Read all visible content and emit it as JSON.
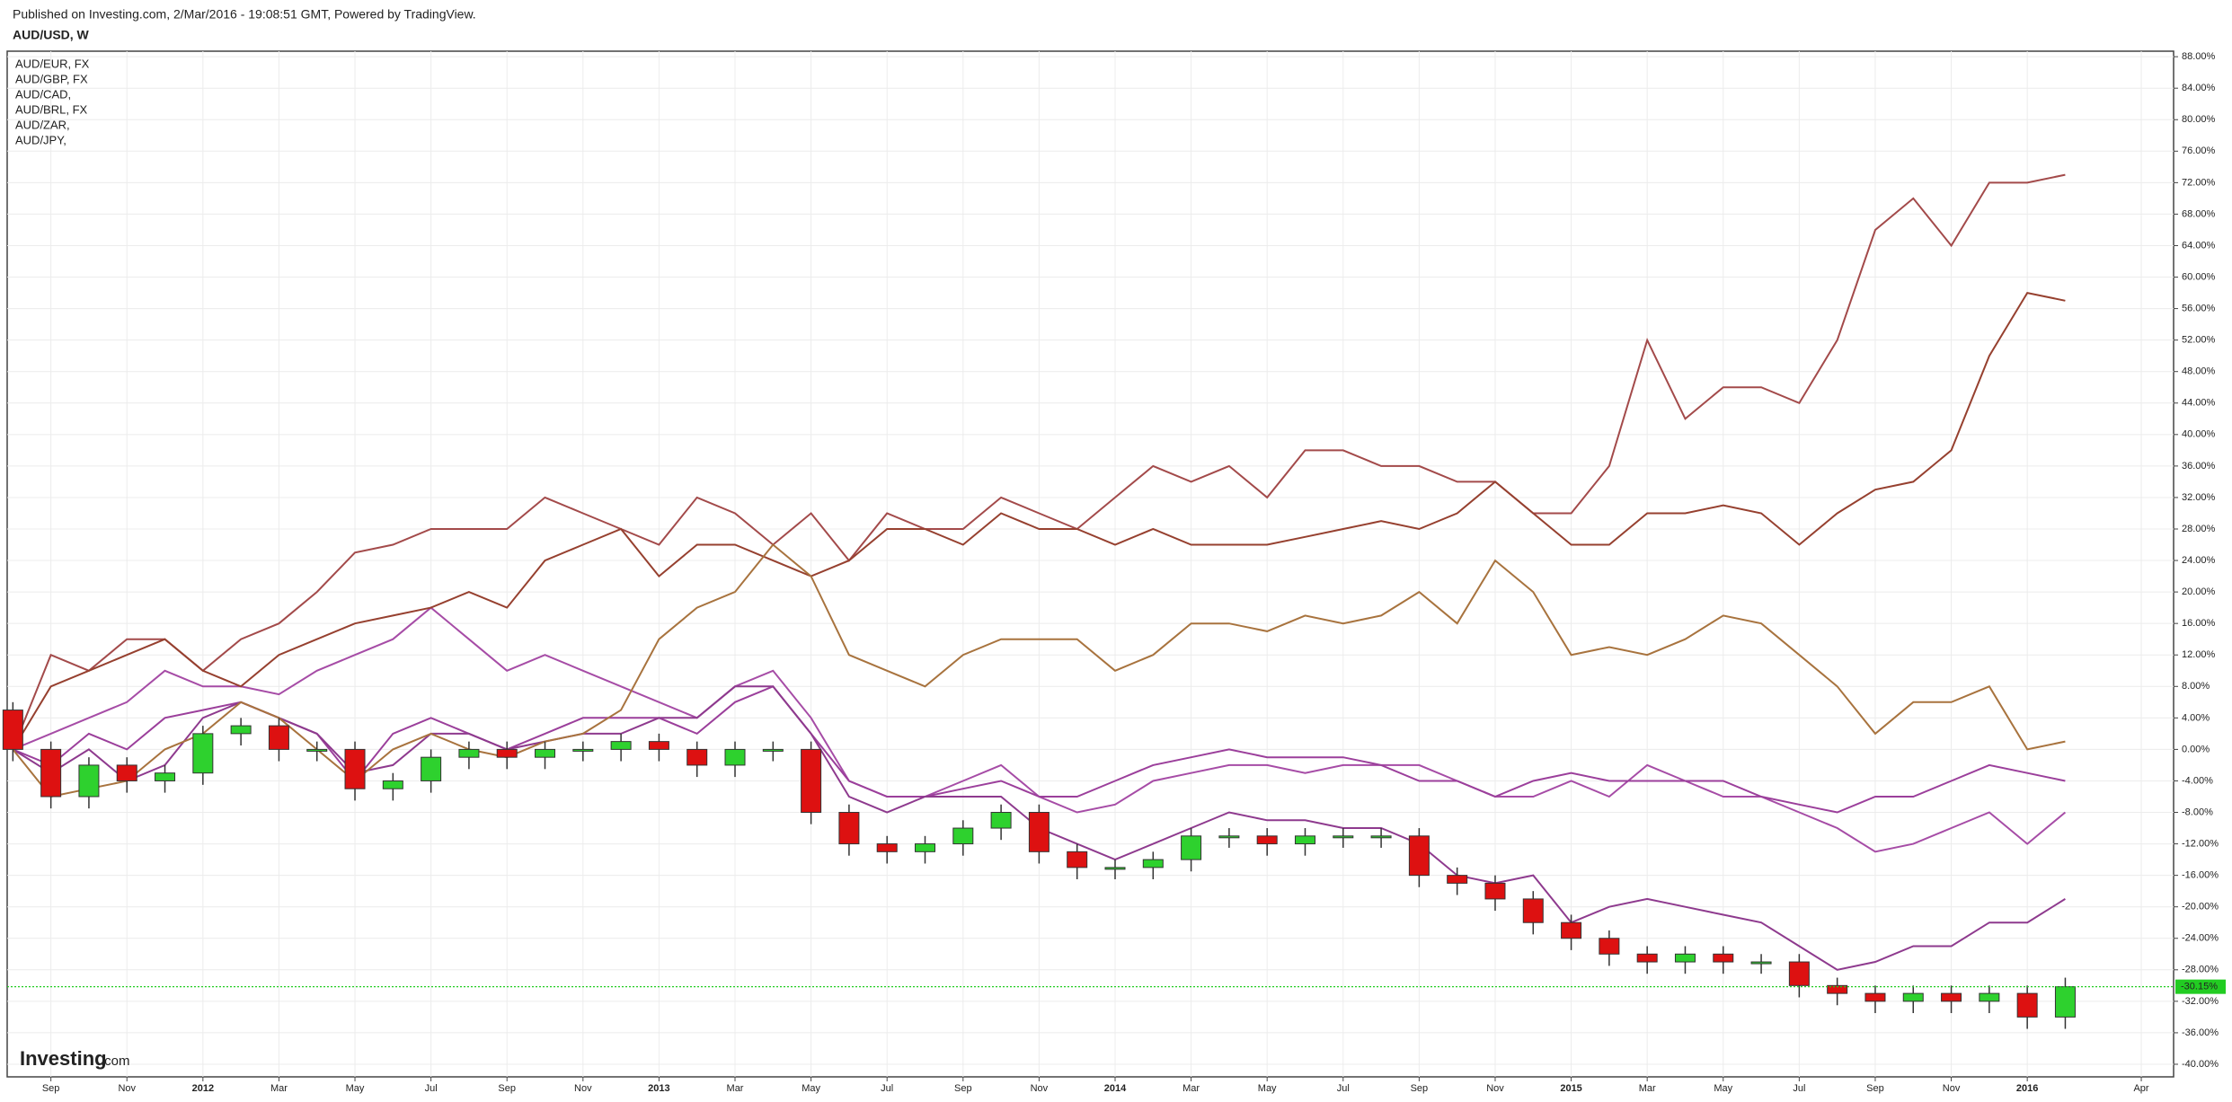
{
  "header": {
    "published": "Published on Investing.com, 2/Mar/2016 - 19:08:51 GMT, Powered by TradingView.",
    "symbol": "AUD/USD, W"
  },
  "watermark": {
    "brand": "Investing",
    "suffix": ".com"
  },
  "chart_data": {
    "type": "candlestick",
    "grid": true,
    "x": [
      "2011-08",
      "2011-09",
      "2011-10",
      "2011-11",
      "2011-12",
      "2012-01",
      "2012-02",
      "2012-03",
      "2012-04",
      "2012-05",
      "2012-06",
      "2012-07",
      "2012-08",
      "2012-09",
      "2012-10",
      "2012-11",
      "2012-12",
      "2013-01",
      "2013-02",
      "2013-03",
      "2013-04",
      "2013-05",
      "2013-06",
      "2013-07",
      "2013-08",
      "2013-09",
      "2013-10",
      "2013-11",
      "2013-12",
      "2014-01",
      "2014-02",
      "2014-03",
      "2014-04",
      "2014-05",
      "2014-06",
      "2014-07",
      "2014-08",
      "2014-09",
      "2014-10",
      "2014-11",
      "2014-12",
      "2015-01",
      "2015-02",
      "2015-03",
      "2015-04",
      "2015-05",
      "2015-06",
      "2015-07",
      "2015-08",
      "2015-09",
      "2015-10",
      "2015-11",
      "2015-12",
      "2016-01",
      "2016-02"
    ],
    "xlim": [
      "2011-08",
      "2016-05"
    ],
    "xticks": [
      {
        "value": "2011-09",
        "label": "Sep"
      },
      {
        "value": "2011-11",
        "label": "Nov"
      },
      {
        "value": "2012-01",
        "label": "2012"
      },
      {
        "value": "2012-03",
        "label": "Mar"
      },
      {
        "value": "2012-05",
        "label": "May"
      },
      {
        "value": "2012-07",
        "label": "Jul"
      },
      {
        "value": "2012-09",
        "label": "Sep"
      },
      {
        "value": "2012-11",
        "label": "Nov"
      },
      {
        "value": "2013-01",
        "label": "2013"
      },
      {
        "value": "2013-03",
        "label": "Mar"
      },
      {
        "value": "2013-05",
        "label": "May"
      },
      {
        "value": "2013-07",
        "label": "Jul"
      },
      {
        "value": "2013-09",
        "label": "Sep"
      },
      {
        "value": "2013-11",
        "label": "Nov"
      },
      {
        "value": "2014-01",
        "label": "2014"
      },
      {
        "value": "2014-03",
        "label": "Mar"
      },
      {
        "value": "2014-05",
        "label": "May"
      },
      {
        "value": "2014-07",
        "label": "Jul"
      },
      {
        "value": "2014-09",
        "label": "Sep"
      },
      {
        "value": "2014-11",
        "label": "Nov"
      },
      {
        "value": "2015-01",
        "label": "2015"
      },
      {
        "value": "2015-03",
        "label": "Mar"
      },
      {
        "value": "2015-05",
        "label": "May"
      },
      {
        "value": "2015-07",
        "label": "Jul"
      },
      {
        "value": "2015-09",
        "label": "Sep"
      },
      {
        "value": "2015-11",
        "label": "Nov"
      },
      {
        "value": "2016-01",
        "label": "2016"
      },
      {
        "value": "2016-04",
        "label": "Apr"
      }
    ],
    "ylim": [
      -41.6,
      88.7
    ],
    "yticks": [
      {
        "value": 88,
        "label": "88.00%"
      },
      {
        "value": 84,
        "label": "84.00%"
      },
      {
        "value": 80,
        "label": "80.00%"
      },
      {
        "value": 76,
        "label": "76.00%"
      },
      {
        "value": 72,
        "label": "72.00%"
      },
      {
        "value": 68,
        "label": "68.00%"
      },
      {
        "value": 64,
        "label": "64.00%"
      },
      {
        "value": 60,
        "label": "60.00%"
      },
      {
        "value": 56,
        "label": "56.00%"
      },
      {
        "value": 52,
        "label": "52.00%"
      },
      {
        "value": 48,
        "label": "48.00%"
      },
      {
        "value": 44,
        "label": "44.00%"
      },
      {
        "value": 40,
        "label": "40.00%"
      },
      {
        "value": 36,
        "label": "36.00%"
      },
      {
        "value": 32,
        "label": "32.00%"
      },
      {
        "value": 28,
        "label": "28.00%"
      },
      {
        "value": 24,
        "label": "24.00%"
      },
      {
        "value": 20,
        "label": "20.00%"
      },
      {
        "value": 16,
        "label": "16.00%"
      },
      {
        "value": 12,
        "label": "12.00%"
      },
      {
        "value": 8,
        "label": "8.00%"
      },
      {
        "value": 4,
        "label": "4.00%"
      },
      {
        "value": 0,
        "label": "0.00%"
      },
      {
        "value": -4,
        "label": "-4.00%"
      },
      {
        "value": -8,
        "label": "-8.00%"
      },
      {
        "value": -12,
        "label": "-12.00%"
      },
      {
        "value": -16,
        "label": "-16.00%"
      },
      {
        "value": -20,
        "label": "-20.00%"
      },
      {
        "value": -24,
        "label": "-24.00%"
      },
      {
        "value": -28,
        "label": "-28.00%"
      },
      {
        "value": -32,
        "label": "-32.00%"
      },
      {
        "value": -36,
        "label": "-36.00%"
      },
      {
        "value": -40,
        "label": "-40.00%"
      }
    ],
    "candles": {
      "up_color": "#2ed12e",
      "down_color": "#dd1111",
      "open": [
        5,
        0,
        -6,
        -2,
        -4,
        -3,
        2,
        3,
        0,
        0,
        -5,
        -4,
        -1,
        0,
        -1,
        0,
        0,
        1,
        0,
        -2,
        0,
        0,
        -8,
        -12,
        -13,
        -12,
        -10,
        -8,
        -13,
        -15,
        -15,
        -14,
        -11,
        -11,
        -12,
        -11,
        -11,
        -11,
        -16,
        -17,
        -19,
        -22,
        -24,
        -26,
        -27,
        -26,
        -27,
        -27,
        -30,
        -31,
        -32,
        -31,
        -32,
        -31,
        -34
      ],
      "high": [
        6,
        1,
        -1,
        -1,
        -2,
        3,
        4,
        4,
        1,
        1,
        -3,
        0,
        1,
        1,
        1,
        1,
        2,
        2,
        1,
        1,
        1,
        1,
        -7,
        -11,
        -11,
        -9,
        -7,
        -7,
        -12,
        -14,
        -13,
        -10,
        -10,
        -10,
        -10,
        -10,
        -10,
        -10,
        -15,
        -16,
        -18,
        -21,
        -23,
        -25,
        -25,
        -25,
        -26,
        -26,
        -29,
        -30,
        -30,
        -30,
        -30,
        -30,
        -29
      ],
      "low": [
        -1.5,
        -7.5,
        -7.5,
        -5.5,
        -5.5,
        -4.5,
        0.5,
        -1.5,
        -1.5,
        -6.5,
        -6.5,
        -5.5,
        -2.5,
        -2.5,
        -2.5,
        -1.5,
        -1.5,
        -1.5,
        -3.5,
        -3.5,
        -1.5,
        -9.5,
        -13.5,
        -14.5,
        -14.5,
        -13.5,
        -11.5,
        -14.5,
        -16.5,
        -16.5,
        -16.5,
        -15.5,
        -12.5,
        -13.5,
        -13.5,
        -12.5,
        -12.5,
        -17.5,
        -18.5,
        -20.5,
        -23.5,
        -25.5,
        -27.5,
        -28.5,
        -28.5,
        -28.5,
        -28.5,
        -31.5,
        -32.5,
        -33.5,
        -33.5,
        -33.5,
        -33.5,
        -35.5,
        -35.5
      ],
      "close": [
        0,
        -6,
        -2,
        -4,
        -3,
        2,
        3,
        0,
        0,
        -5,
        -4,
        -1,
        0,
        -1,
        0,
        0,
        1,
        0,
        -2,
        0,
        0,
        -8,
        -12,
        -13,
        -12,
        -10,
        -8,
        -13,
        -15,
        -15,
        -14,
        -11,
        -11,
        -12,
        -11,
        -11,
        -11,
        -16,
        -17,
        -19,
        -22,
        -24,
        -26,
        -27,
        -26,
        -27,
        -27,
        -30,
        -31,
        -32,
        -31,
        -32,
        -31,
        -34,
        -30.15
      ]
    },
    "last_value": {
      "value": -30.15,
      "label": "-30.15%"
    },
    "last_value_color": "#22cc22",
    "series": [
      {
        "name": "AUD/EUR, FX",
        "color": "#a64ca6",
        "values": [
          0,
          2,
          4,
          6,
          10,
          8,
          8,
          7,
          10,
          12,
          14,
          18,
          14,
          10,
          12,
          10,
          8,
          6,
          4,
          8,
          10,
          4,
          -4,
          -6,
          -6,
          -4,
          -2,
          -6,
          -8,
          -7,
          -4,
          -3,
          -2,
          -2,
          -3,
          -2,
          -2,
          -2,
          -4,
          -6,
          -6,
          -4,
          -6,
          -2,
          -4,
          -6,
          -6,
          -8,
          -10,
          -13,
          -12,
          -10,
          -8,
          -12,
          -8
        ]
      },
      {
        "name": "AUD/GBP, FX",
        "color": "#9b3f9b",
        "values": [
          0,
          -2,
          2,
          0,
          4,
          5,
          6,
          4,
          2,
          -4,
          2,
          4,
          2,
          0,
          2,
          4,
          4,
          4,
          2,
          6,
          8,
          2,
          -4,
          -6,
          -6,
          -5,
          -4,
          -6,
          -6,
          -4,
          -2,
          -1,
          0,
          -1,
          -1,
          -1,
          -2,
          -4,
          -4,
          -6,
          -4,
          -3,
          -4,
          -4,
          -4,
          -4,
          -6,
          -7,
          -8,
          -6,
          -6,
          -4,
          -2,
          -3,
          -4
        ]
      },
      {
        "name": "AUD/CAD,",
        "color": "#8e3a8e",
        "values": [
          0,
          -3,
          0,
          -4,
          -2,
          4,
          6,
          4,
          2,
          -3,
          -2,
          2,
          2,
          0,
          1,
          2,
          2,
          4,
          4,
          8,
          8,
          2,
          -6,
          -8,
          -6,
          -6,
          -6,
          -10,
          -12,
          -14,
          -12,
          -10,
          -8,
          -9,
          -9,
          -10,
          -10,
          -12,
          -16,
          -17,
          -16,
          -22,
          -20,
          -19,
          -20,
          -21,
          -22,
          -25,
          -28,
          -27,
          -25,
          -25,
          -22,
          -22,
          -19
        ]
      },
      {
        "name": "AUD/BRL, FX",
        "color": "#a34a4a",
        "values": [
          0,
          12,
          10,
          14,
          14,
          10,
          14,
          16,
          20,
          25,
          26,
          28,
          28,
          28,
          32,
          30,
          28,
          26,
          32,
          30,
          26,
          30,
          24,
          30,
          28,
          28,
          32,
          30,
          28,
          32,
          36,
          34,
          36,
          32,
          38,
          38,
          36,
          36,
          34,
          34,
          30,
          30,
          36,
          52,
          42,
          46,
          46,
          44,
          52,
          66,
          70,
          64,
          72,
          72,
          73
        ]
      },
      {
        "name": "AUD/ZAR,",
        "color": "#96402f",
        "values": [
          0,
          8,
          10,
          12,
          14,
          10,
          8,
          12,
          14,
          16,
          17,
          18,
          20,
          18,
          24,
          26,
          28,
          22,
          26,
          26,
          24,
          22,
          24,
          28,
          28,
          26,
          30,
          28,
          28,
          26,
          28,
          26,
          26,
          26,
          27,
          28,
          29,
          28,
          30,
          34,
          30,
          26,
          26,
          30,
          30,
          31,
          30,
          26,
          30,
          33,
          34,
          38,
          50,
          58,
          57
        ]
      },
      {
        "name": "AUD/JPY,",
        "color": "#a8733e",
        "values": [
          0,
          -6,
          -5,
          -4,
          0,
          2,
          6,
          4,
          0,
          -4,
          0,
          2,
          0,
          -1,
          1,
          2,
          5,
          14,
          18,
          20,
          26,
          22,
          12,
          10,
          8,
          12,
          14,
          14,
          14,
          10,
          12,
          16,
          16,
          15,
          17,
          16,
          17,
          20,
          16,
          24,
          20,
          12,
          13,
          12,
          14,
          17,
          16,
          12,
          8,
          2,
          6,
          6,
          8,
          0,
          1
        ]
      }
    ]
  }
}
